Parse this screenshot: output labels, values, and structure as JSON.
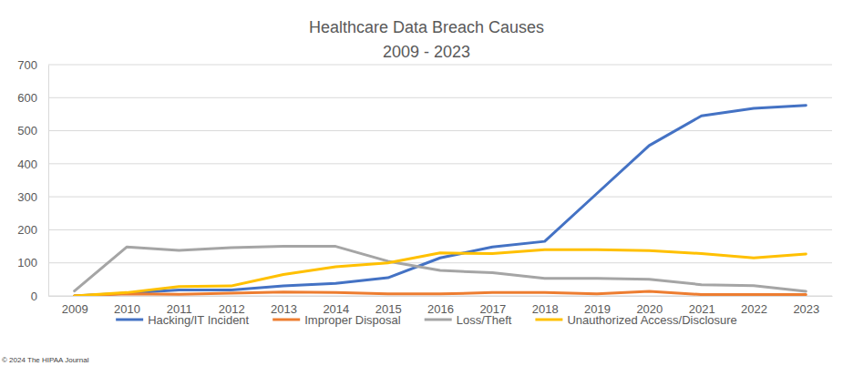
{
  "chart_data": {
    "type": "line",
    "title": "Healthcare Data Breach Causes",
    "subtitle": "2009 - 2023",
    "annotations": [
      "© 2024 The HIPAA Journal"
    ],
    "categories": [
      "2009",
      "2010",
      "2011",
      "2012",
      "2013",
      "2014",
      "2015",
      "2016",
      "2017",
      "2018",
      "2019",
      "2020",
      "2021",
      "2022",
      "2023"
    ],
    "series": [
      {
        "name": "Hacking/IT Incident",
        "color": "#4472c4",
        "values": [
          0,
          8,
          18,
          18,
          30,
          38,
          55,
          115,
          148,
          165,
          310,
          455,
          545,
          568,
          577
        ]
      },
      {
        "name": "Improper Disposal",
        "color": "#ed7d31",
        "values": [
          0,
          6,
          5,
          8,
          12,
          10,
          6,
          6,
          10,
          10,
          6,
          14,
          4,
          4,
          4
        ]
      },
      {
        "name": "Loss/Theft",
        "color": "#a5a5a5",
        "values": [
          15,
          148,
          138,
          146,
          150,
          150,
          105,
          77,
          70,
          53,
          53,
          50,
          34,
          31,
          14
        ]
      },
      {
        "name": "Unauthorized Access/Disclosure",
        "color": "#ffc000",
        "values": [
          0,
          10,
          28,
          30,
          65,
          88,
          100,
          130,
          128,
          140,
          140,
          137,
          128,
          115,
          127
        ]
      }
    ],
    "ylim": [
      0,
      700
    ],
    "yticks": [
      0,
      100,
      200,
      300,
      400,
      500,
      600,
      700
    ],
    "grid": true,
    "legend": "bottom"
  }
}
